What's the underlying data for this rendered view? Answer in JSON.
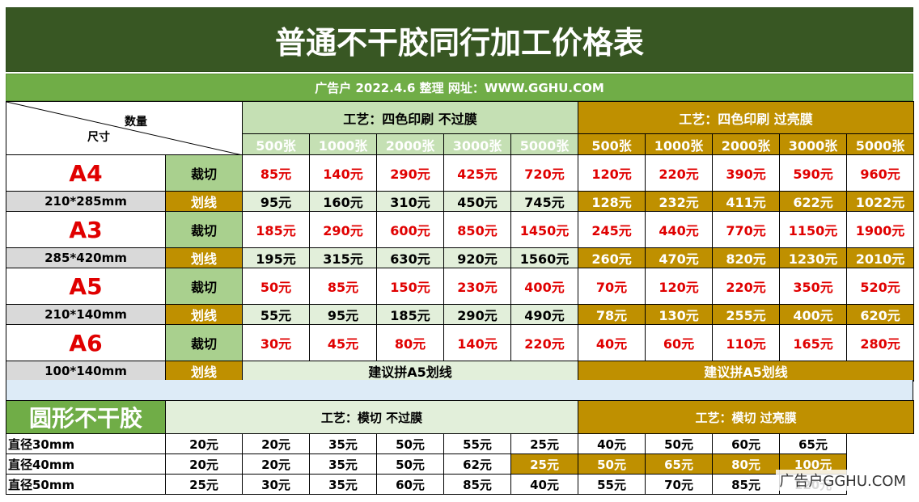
{
  "title": "普通不干胶同行加工价格表",
  "subtitle": "广告户 2022.4.6 整理 网址：WWW.GGHU.COM",
  "corner": {
    "qty": "数量",
    "size": "尺寸"
  },
  "process_green": "工艺：四色印刷 不过膜",
  "process_gold": "工艺：四色印刷 过亮膜",
  "quantities": [
    "500张",
    "1000张",
    "2000张",
    "3000张",
    "5000张"
  ],
  "rows": [
    {
      "size": "A4",
      "dim": "210*285mm",
      "cut_label": "裁切",
      "line_label": "划线",
      "cut_green": [
        "85元",
        "140元",
        "290元",
        "425元",
        "720元"
      ],
      "cut_gold": [
        "120元",
        "220元",
        "390元",
        "590元",
        "960元"
      ],
      "line_green": [
        "95元",
        "160元",
        "310元",
        "450元",
        "745元"
      ],
      "line_gold": [
        "128元",
        "232元",
        "411元",
        "622元",
        "1022元"
      ]
    },
    {
      "size": "A3",
      "dim": "285*420mm",
      "cut_label": "裁切",
      "line_label": "划线",
      "cut_green": [
        "185元",
        "290元",
        "600元",
        "850元",
        "1450元"
      ],
      "cut_gold": [
        "245元",
        "440元",
        "770元",
        "1150元",
        "1900元"
      ],
      "line_green": [
        "195元",
        "315元",
        "630元",
        "920元",
        "1560元"
      ],
      "line_gold": [
        "260元",
        "470元",
        "820元",
        "1230元",
        "2010元"
      ]
    },
    {
      "size": "A5",
      "dim": "210*140mm",
      "cut_label": "裁切",
      "line_label": "划线",
      "cut_green": [
        "50元",
        "85元",
        "150元",
        "230元",
        "400元"
      ],
      "cut_gold": [
        "70元",
        "120元",
        "220元",
        "350元",
        "520元"
      ],
      "line_green": [
        "55元",
        "95元",
        "185元",
        "290元",
        "490元"
      ],
      "line_gold": [
        "78元",
        "130元",
        "255元",
        "400元",
        "620元"
      ]
    },
    {
      "size": "A6",
      "dim": "100*140mm",
      "cut_label": "裁切",
      "line_label": "划线",
      "cut_green": [
        "30元",
        "45元",
        "80元",
        "140元",
        "220元"
      ],
      "cut_gold": [
        "40元",
        "60元",
        "110元",
        "165元",
        "280元"
      ],
      "line_note_green": "建议拼A5划线",
      "line_note_gold": "建议拼A5划线"
    }
  ],
  "round": {
    "label": "圆形不干胶",
    "process_green": "工艺：模切 不过膜",
    "process_gold": "工艺：模切 过亮膜",
    "rows": [
      {
        "dia": "直径30mm",
        "green": [
          "20元",
          "20元",
          "35元",
          "50元",
          "55元"
        ],
        "gold": [
          "25元",
          "40元",
          "50元",
          "60元",
          "65元"
        ]
      },
      {
        "dia": "直径40mm",
        "green": [
          "20元",
          "20元",
          "35元",
          "50元",
          "62元"
        ],
        "gold": [
          "25元",
          "50元",
          "65元",
          "80元",
          "100元"
        ]
      },
      {
        "dia": "直径50mm",
        "green": [
          "25元",
          "30元",
          "35元",
          "60元",
          "85元"
        ],
        "gold": [
          "40元",
          "55元",
          "70元",
          "85元",
          "120元"
        ]
      }
    ]
  },
  "watermark": "广告户GGHU.COM"
}
